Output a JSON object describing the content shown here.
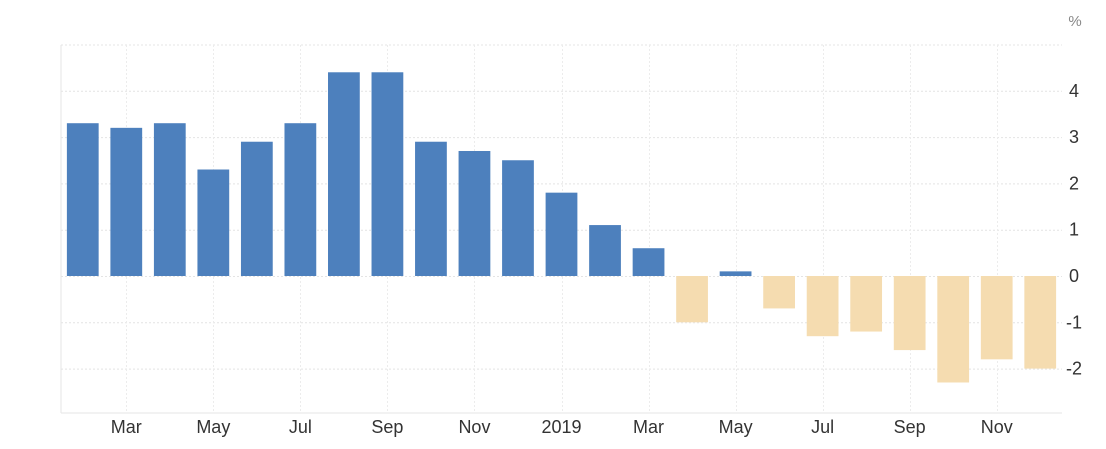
{
  "chart_data": {
    "type": "bar",
    "unit_label": "%",
    "title": "",
    "xlabel": "",
    "ylabel": "",
    "ylim": [
      -3,
      5
    ],
    "grid": true,
    "yticks": [
      -2,
      -1,
      0,
      1,
      2,
      3,
      4
    ],
    "x_tick_labels": [
      {
        "index": 1,
        "label": "Mar"
      },
      {
        "index": 3,
        "label": "May"
      },
      {
        "index": 5,
        "label": "Jul"
      },
      {
        "index": 7,
        "label": "Sep"
      },
      {
        "index": 9,
        "label": "Nov"
      },
      {
        "index": 11,
        "label": "2019"
      },
      {
        "index": 13,
        "label": "Mar"
      },
      {
        "index": 15,
        "label": "May"
      },
      {
        "index": 17,
        "label": "Jul"
      },
      {
        "index": 19,
        "label": "Sep"
      },
      {
        "index": 21,
        "label": "Nov"
      }
    ],
    "values": [
      3.3,
      3.2,
      3.3,
      2.3,
      2.9,
      3.3,
      4.4,
      4.4,
      2.9,
      2.7,
      2.5,
      1.8,
      1.1,
      0.6,
      -1.0,
      0.1,
      -0.7,
      -1.3,
      -1.2,
      -1.6,
      -2.3,
      -1.8,
      -2.0
    ],
    "positive_color": "#4d80bd",
    "negative_color": "#f5dcb0"
  }
}
